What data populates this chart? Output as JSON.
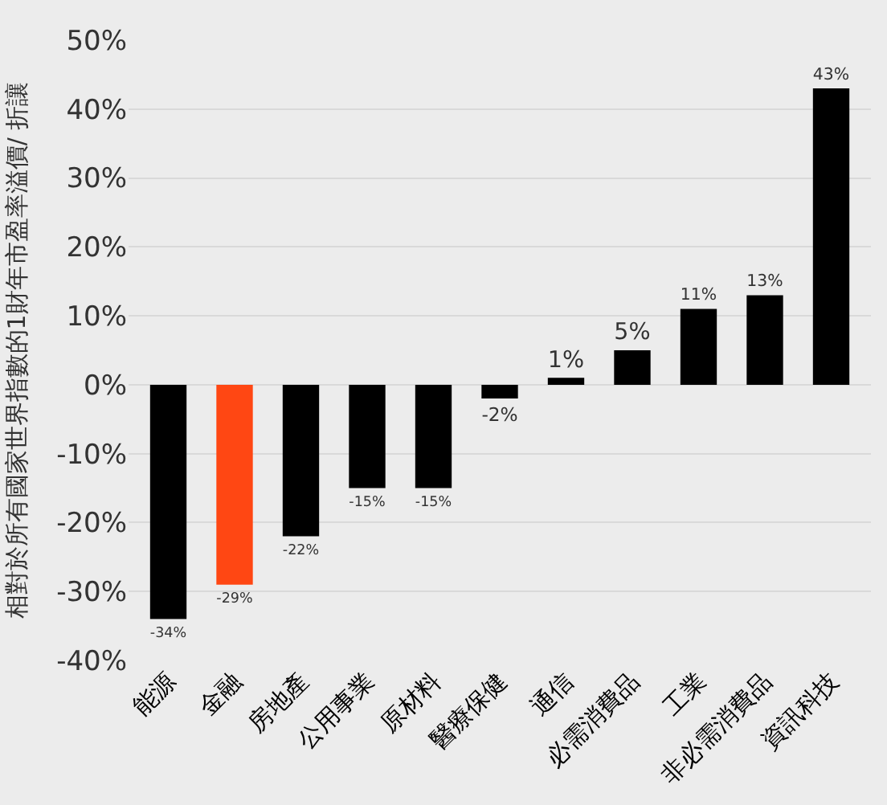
{
  "chart_data": {
    "type": "bar",
    "ylabel": "相對於所有國家世界指數的1財年市盈率溢價/ 折讓",
    "categories": [
      "能源",
      "金融",
      "房地產",
      "公用事業",
      "原材料",
      "醫療保健",
      "通信",
      "必需消費品",
      "工業",
      "非必需消費品",
      "資訊科技"
    ],
    "values": [
      -34,
      -29,
      -22,
      -15,
      -15,
      -2,
      1,
      5,
      11,
      13,
      43
    ],
    "value_labels": [
      "-34%",
      "-29%",
      "-22%",
      "-15%",
      "-15%",
      "-2%",
      "1%",
      "5%",
      "11%",
      "13%",
      "43%"
    ],
    "colors": [
      "#000000",
      "#ff4713",
      "#000000",
      "#000000",
      "#000000",
      "#000000",
      "#000000",
      "#000000",
      "#000000",
      "#000000",
      "#000000"
    ],
    "ylim": [
      -40,
      50
    ],
    "yticks": [
      {
        "value": -40,
        "label": "-40%"
      },
      {
        "value": -30,
        "label": "-30%"
      },
      {
        "value": -20,
        "label": "-20%"
      },
      {
        "value": -10,
        "label": "-10%"
      },
      {
        "value": 0,
        "label": "0%"
      },
      {
        "value": 10,
        "label": "10%"
      },
      {
        "value": 20,
        "label": "20%"
      },
      {
        "value": 30,
        "label": "30%"
      },
      {
        "value": 40,
        "label": "40%"
      },
      {
        "value": 50,
        "label": "50%"
      }
    ],
    "grid": "y",
    "legend": false
  }
}
